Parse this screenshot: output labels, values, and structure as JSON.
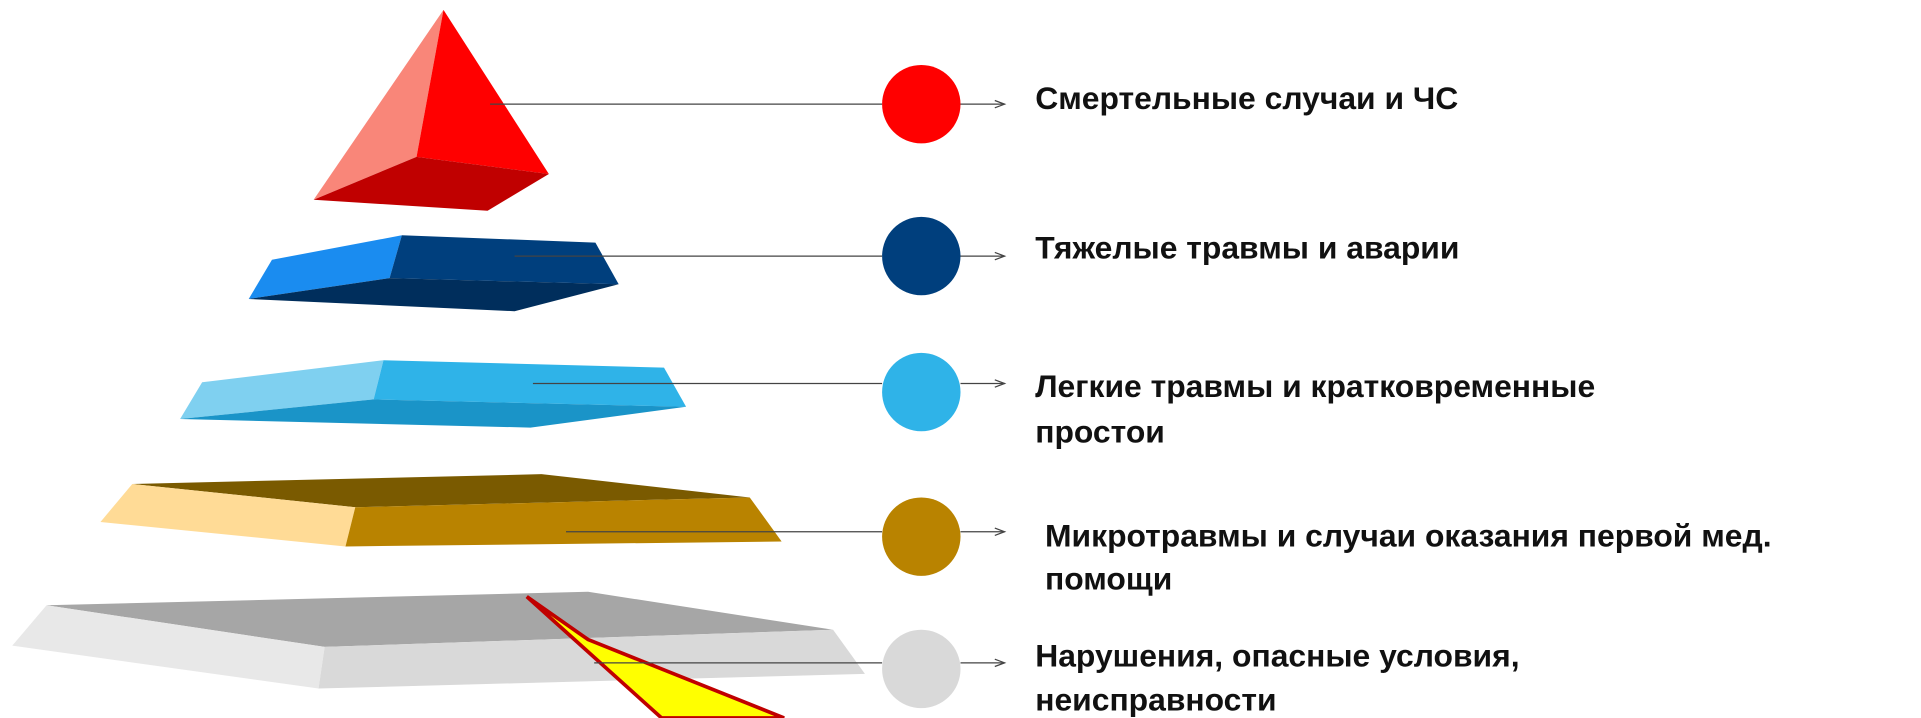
{
  "levels": [
    {
      "lines": [
        "Смертельные случаи и ЧС"
      ]
    },
    {
      "lines": [
        "Тяжелые травмы и аварии"
      ]
    },
    {
      "lines": [
        "Легкие травмы и кратковременные",
        "простои"
      ]
    },
    {
      "lines": [
        "Микротравмы и случаи оказания первой мед.",
        "помощи"
      ]
    },
    {
      "lines": [
        "Нарушения, опасные условия,",
        "неисправности"
      ]
    }
  ]
}
